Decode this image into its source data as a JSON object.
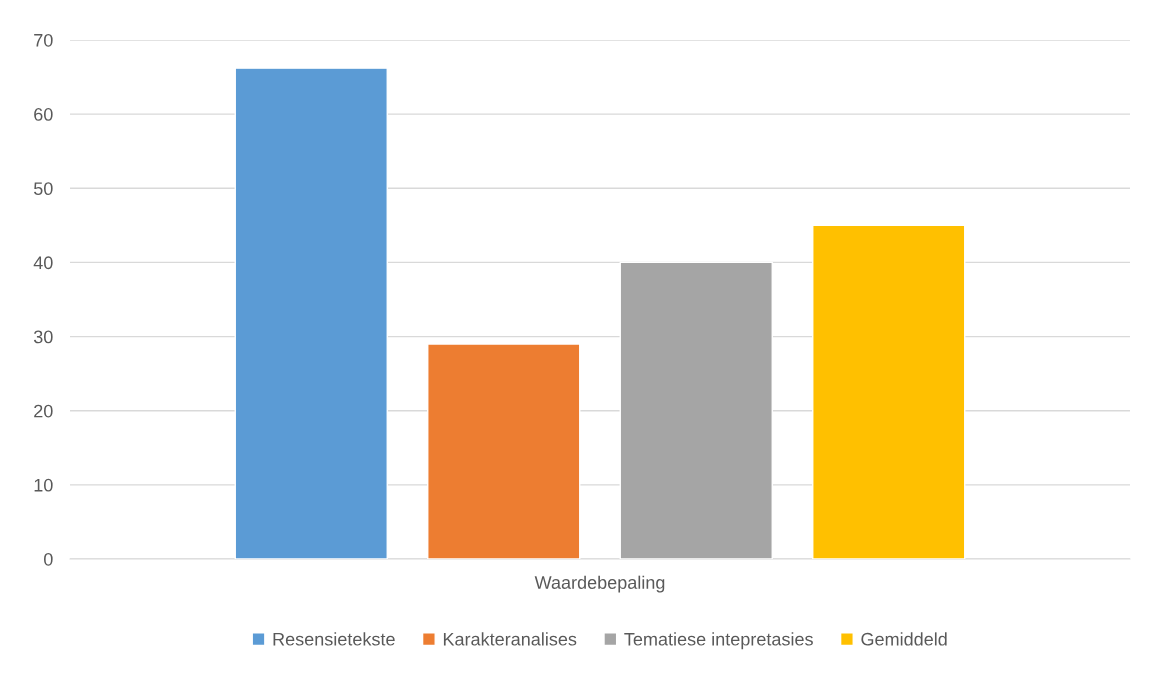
{
  "chart_data": {
    "type": "bar",
    "categories": [
      "Waardebepaling"
    ],
    "series": [
      {
        "name": "Resensietekste",
        "color": "#5b9bd5",
        "values": [
          66.2
        ]
      },
      {
        "name": "Karakteranalises",
        "color": "#ed7d31",
        "values": [
          29
        ]
      },
      {
        "name": "Tematiese intepretasies",
        "color": "#a5a5a5",
        "values": [
          40
        ]
      },
      {
        "name": "Gemiddeld",
        "color": "#ffc000",
        "values": [
          45
        ]
      }
    ],
    "ylim": [
      0,
      70
    ],
    "yticks": [
      0,
      10,
      20,
      30,
      40,
      50,
      60,
      70
    ],
    "grid": "y",
    "legend": "bottom"
  }
}
